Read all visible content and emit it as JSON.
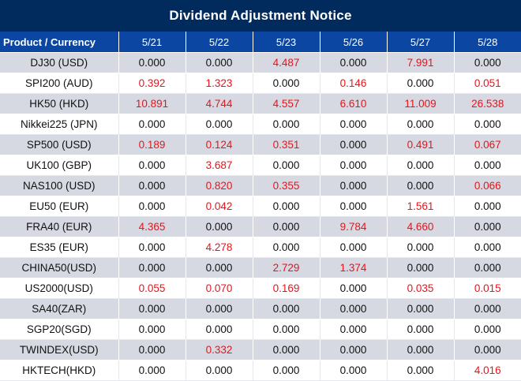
{
  "title": "Dividend Adjustment Notice",
  "header": {
    "product_label": "Product / Currency",
    "dates": [
      "5/21",
      "5/22",
      "5/23",
      "5/26",
      "5/27",
      "5/28"
    ]
  },
  "colors": {
    "title_bg": "#002b5c",
    "header_bg": "#0b47a2",
    "alt_row_bg": "#d6d9e2",
    "nonzero_value": "#e8141b",
    "zero_value": "#111111"
  },
  "rows": [
    {
      "product": "DJ30 (USD)",
      "values": [
        "0.000",
        "0.000",
        "4.487",
        "0.000",
        "7.991",
        "0.000"
      ]
    },
    {
      "product": "SPI200 (AUD)",
      "values": [
        "0.392",
        "1.323",
        "0.000",
        "0.146",
        "0.000",
        "0.051"
      ]
    },
    {
      "product": "HK50 (HKD)",
      "values": [
        "10.891",
        "4.744",
        "4.557",
        "6.610",
        "11.009",
        "26.538"
      ]
    },
    {
      "product": "Nikkei225 (JPN)",
      "values": [
        "0.000",
        "0.000",
        "0.000",
        "0.000",
        "0.000",
        "0.000"
      ]
    },
    {
      "product": "SP500 (USD)",
      "values": [
        "0.189",
        "0.124",
        "0.351",
        "0.000",
        "0.491",
        "0.067"
      ]
    },
    {
      "product": "UK100 (GBP)",
      "values": [
        "0.000",
        "3.687",
        "0.000",
        "0.000",
        "0.000",
        "0.000"
      ]
    },
    {
      "product": "NAS100 (USD)",
      "values": [
        "0.000",
        "0.820",
        "0.355",
        "0.000",
        "0.000",
        "0.066"
      ]
    },
    {
      "product": "EU50 (EUR)",
      "values": [
        "0.000",
        "0.042",
        "0.000",
        "0.000",
        "1.561",
        "0.000"
      ]
    },
    {
      "product": "FRA40 (EUR)",
      "values": [
        "4.365",
        "0.000",
        "0.000",
        "9.784",
        "4.660",
        "0.000"
      ]
    },
    {
      "product": "ES35 (EUR)",
      "values": [
        "0.000",
        "4.278",
        "0.000",
        "0.000",
        "0.000",
        "0.000"
      ]
    },
    {
      "product": "CHINA50(USD)",
      "values": [
        "0.000",
        "0.000",
        "2.729",
        "1.374",
        "0.000",
        "0.000"
      ]
    },
    {
      "product": "US2000(USD)",
      "values": [
        "0.055",
        "0.070",
        "0.169",
        "0.000",
        "0.035",
        "0.015"
      ]
    },
    {
      "product": "SA40(ZAR)",
      "values": [
        "0.000",
        "0.000",
        "0.000",
        "0.000",
        "0.000",
        "0.000"
      ]
    },
    {
      "product": "SGP20(SGD)",
      "values": [
        "0.000",
        "0.000",
        "0.000",
        "0.000",
        "0.000",
        "0.000"
      ]
    },
    {
      "product": "TWINDEX(USD)",
      "values": [
        "0.000",
        "0.332",
        "0.000",
        "0.000",
        "0.000",
        "0.000"
      ]
    },
    {
      "product": "HKTECH(HKD)",
      "values": [
        "0.000",
        "0.000",
        "0.000",
        "0.000",
        "0.000",
        "4.016"
      ]
    }
  ]
}
